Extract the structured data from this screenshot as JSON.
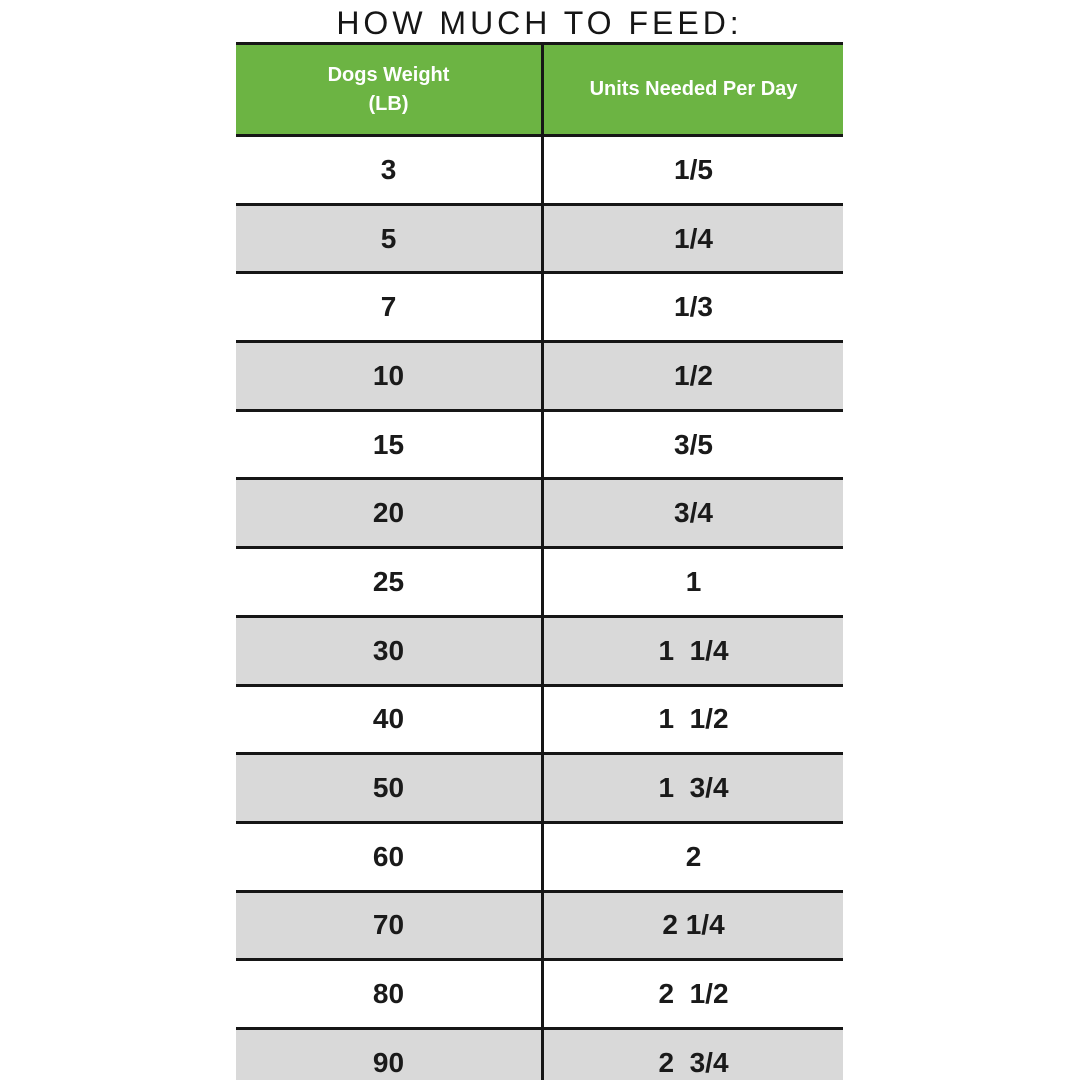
{
  "chart_data": {
    "type": "table",
    "title": "HOW MUCH TO FEED:",
    "columns": [
      "Dogs Weight (LB)",
      "Units Needed Per Day"
    ],
    "header": {
      "col1_line1": "Dogs Weight",
      "col1_line2": "(LB)",
      "col2": "Units Needed Per Day"
    },
    "rows": [
      {
        "weight": "3",
        "units": "1/5"
      },
      {
        "weight": "5",
        "units": "1/4"
      },
      {
        "weight": "7",
        "units": "1/3"
      },
      {
        "weight": "10",
        "units": "1/2"
      },
      {
        "weight": "15",
        "units": "3/5"
      },
      {
        "weight": "20",
        "units": "3/4"
      },
      {
        "weight": "25",
        "units": "1"
      },
      {
        "weight": "30",
        "units": "1  1/4"
      },
      {
        "weight": "40",
        "units": "1  1/2"
      },
      {
        "weight": "50",
        "units": "1  3/4"
      },
      {
        "weight": "60",
        "units": "2"
      },
      {
        "weight": "70",
        "units": "2 1/4"
      },
      {
        "weight": "80",
        "units": "2  1/2"
      },
      {
        "weight": "90",
        "units": "2  3/4"
      }
    ],
    "layout": {
      "striped": true,
      "first_row_background": "white",
      "grid": "horizontal-separators-and-center-divider"
    }
  },
  "colors": {
    "header_green": "#6cb443",
    "row_stripe_gray": "#d9d9d9",
    "grid_line": "#161616",
    "text_dark": "#1a1a1a",
    "header_text": "#ffffff",
    "background": "#ffffff"
  }
}
